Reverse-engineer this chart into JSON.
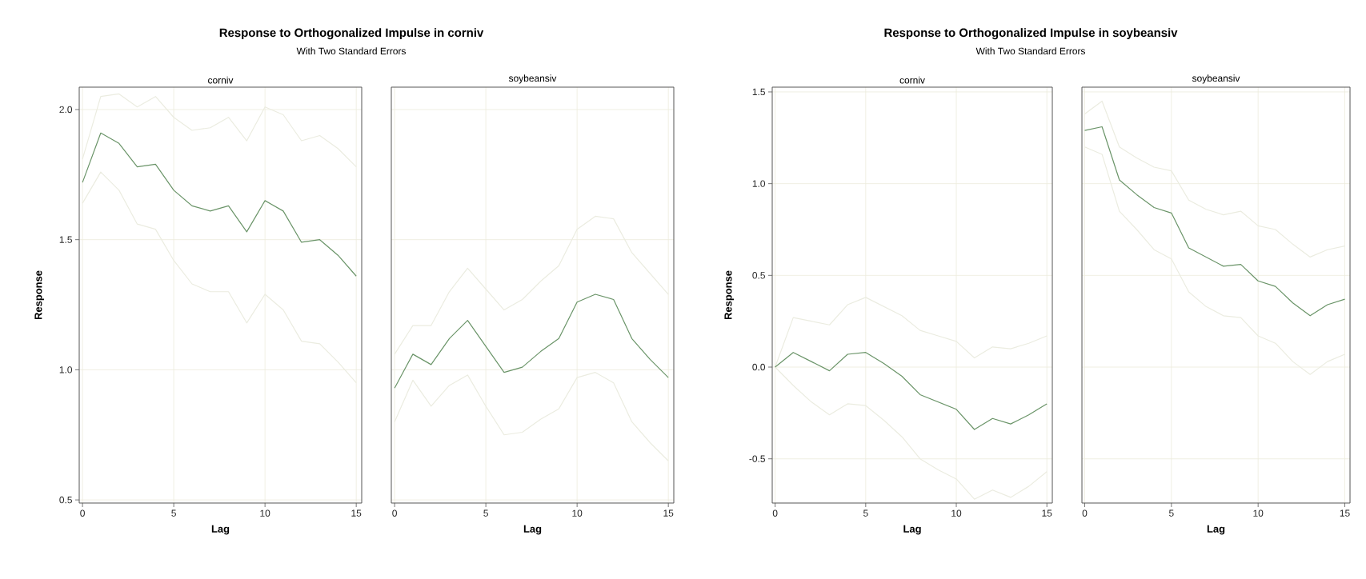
{
  "chart_data": [
    {
      "type": "line",
      "title": "corniv",
      "annotations": [
        "Response to Orthogonalized Impulse in corniv",
        "With Two Standard Errors"
      ],
      "xlabel": "Lag",
      "ylabel": "Response",
      "grid": true,
      "xlim": [
        -0.18,
        15.3
      ],
      "ylim": [
        0.488,
        2.086
      ],
      "xticks": [
        0,
        5,
        10,
        15
      ],
      "yticks": [
        0.5,
        {
          "value": 1,
          "label": "1.0"
        },
        1.5,
        {
          "value": 2,
          "label": "2.0"
        }
      ],
      "x": [
        0,
        1,
        2,
        3,
        4,
        5,
        6,
        7,
        8,
        9,
        10,
        11,
        12,
        13,
        14,
        15
      ],
      "series": [
        {
          "color": "#ebece0",
          "values": [
            1.81,
            2.05,
            2.06,
            2.01,
            2.05,
            1.97,
            1.92,
            1.93,
            1.97,
            1.88,
            2.01,
            1.98,
            1.88,
            1.9,
            1.85,
            1.78
          ]
        },
        {
          "color": "#ebece0",
          "values": [
            1.64,
            1.76,
            1.69,
            1.56,
            1.54,
            1.42,
            1.33,
            1.3,
            1.3,
            1.18,
            1.29,
            1.23,
            1.11,
            1.1,
            1.03,
            0.95
          ]
        },
        {
          "color": "#6a9468",
          "values": [
            1.72,
            1.91,
            1.87,
            1.78,
            1.79,
            1.69,
            1.63,
            1.61,
            1.63,
            1.53,
            1.65,
            1.61,
            1.49,
            1.5,
            1.44,
            1.36
          ]
        }
      ]
    },
    {
      "type": "line",
      "title": "soybeansiv",
      "xlabel": "Lag",
      "grid": true,
      "tick_labels": "x",
      "xlim": [
        -0.18,
        15.3
      ],
      "ylim": [
        0.488,
        2.086
      ],
      "xticks": [
        0,
        5,
        10,
        15
      ],
      "yticks": [
        0.5,
        1,
        1.5,
        2
      ],
      "x": [
        0,
        1,
        2,
        3,
        4,
        5,
        6,
        7,
        8,
        9,
        10,
        11,
        12,
        13,
        14,
        15
      ],
      "series": [
        {
          "color": "#ebece0",
          "values": [
            1.06,
            1.17,
            1.17,
            1.3,
            1.39,
            1.31,
            1.23,
            1.27,
            1.34,
            1.4,
            1.54,
            1.59,
            1.58,
            1.45,
            1.37,
            1.29
          ]
        },
        {
          "color": "#ebece0",
          "values": [
            0.8,
            0.96,
            0.86,
            0.94,
            0.98,
            0.86,
            0.75,
            0.76,
            0.81,
            0.85,
            0.97,
            0.99,
            0.95,
            0.8,
            0.72,
            0.65
          ]
        },
        {
          "color": "#6a9468",
          "values": [
            0.93,
            1.06,
            1.02,
            1.12,
            1.19,
            1.09,
            0.99,
            1.01,
            1.07,
            1.12,
            1.26,
            1.29,
            1.27,
            1.12,
            1.04,
            0.97
          ]
        }
      ]
    },
    {
      "type": "line",
      "title": "corniv",
      "annotations": [
        "Response to Orthogonalized Impulse in soybeansiv",
        "With Two Standard Errors"
      ],
      "xlabel": "Lag",
      "ylabel": "Response",
      "grid": true,
      "xlim": [
        -0.16,
        15.3
      ],
      "ylim": [
        -0.741,
        1.526
      ],
      "xticks": [
        0,
        5,
        10,
        15
      ],
      "yticks": [
        -0.5,
        {
          "value": 0,
          "label": "0.0"
        },
        0.5,
        {
          "value": 1,
          "label": "1.0"
        },
        1.5
      ],
      "x": [
        0,
        1,
        2,
        3,
        4,
        5,
        6,
        7,
        8,
        9,
        10,
        11,
        12,
        13,
        14,
        15
      ],
      "series": [
        {
          "color": "#ebece0",
          "values": [
            0,
            0.27,
            0.25,
            0.23,
            0.34,
            0.38,
            0.33,
            0.28,
            0.2,
            0.17,
            0.14,
            0.05,
            0.11,
            0.1,
            0.13,
            0.17
          ]
        },
        {
          "color": "#ebece0",
          "values": [
            0,
            -0.1,
            -0.19,
            -0.26,
            -0.2,
            -0.21,
            -0.29,
            -0.38,
            -0.5,
            -0.56,
            -0.61,
            -0.72,
            -0.67,
            -0.71,
            -0.65,
            -0.57
          ]
        },
        {
          "color": "#6a9468",
          "values": [
            0,
            0.08,
            0.03,
            -0.02,
            0.07,
            0.08,
            0.02,
            -0.05,
            -0.15,
            -0.19,
            -0.23,
            -0.34,
            -0.28,
            -0.31,
            -0.26,
            -0.2
          ]
        }
      ]
    },
    {
      "type": "line",
      "title": "soybeansiv",
      "xlabel": "Lag",
      "grid": true,
      "tick_labels": "x",
      "xlim": [
        -0.16,
        15.3
      ],
      "ylim": [
        -0.741,
        1.526
      ],
      "xticks": [
        0,
        5,
        10,
        15
      ],
      "yticks": [
        -0.5,
        0,
        0.5,
        1,
        1.5
      ],
      "x": [
        0,
        1,
        2,
        3,
        4,
        5,
        6,
        7,
        8,
        9,
        10,
        11,
        12,
        13,
        14,
        15
      ],
      "series": [
        {
          "color": "#ebece0",
          "values": [
            1.38,
            1.45,
            1.2,
            1.14,
            1.09,
            1.07,
            0.91,
            0.86,
            0.83,
            0.85,
            0.77,
            0.75,
            0.67,
            0.6,
            0.64,
            0.66
          ]
        },
        {
          "color": "#ebece0",
          "values": [
            1.2,
            1.16,
            0.85,
            0.75,
            0.64,
            0.59,
            0.41,
            0.33,
            0.28,
            0.27,
            0.17,
            0.13,
            0.03,
            -0.04,
            0.03,
            0.07
          ]
        },
        {
          "color": "#6a9468",
          "values": [
            1.29,
            1.31,
            1.02,
            0.94,
            0.87,
            0.84,
            0.65,
            0.6,
            0.55,
            0.56,
            0.47,
            0.44,
            0.35,
            0.28,
            0.34,
            0.37
          ]
        }
      ]
    }
  ]
}
